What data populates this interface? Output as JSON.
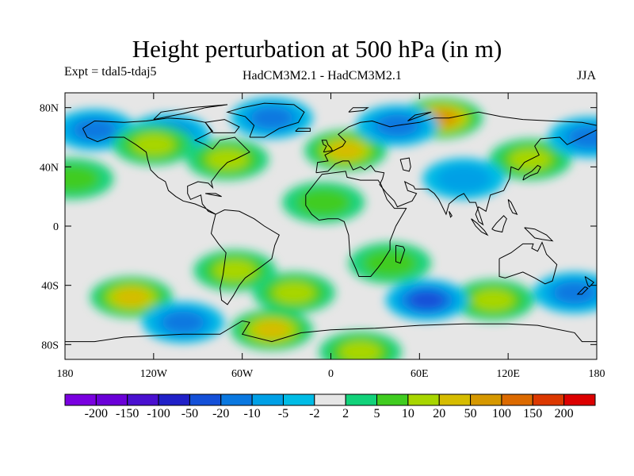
{
  "title": "Height perturbation at 500 hPa (in m)",
  "left_label": "Expt = tdal5-tdaj5",
  "center_label": "HadCM3M2.1 - HadCM3M2.1",
  "right_label": "JJA",
  "lat_ticks": [
    {
      "label": "80N",
      "lat": 80
    },
    {
      "label": "40N",
      "lat": 40
    },
    {
      "label": "0",
      "lat": 0
    },
    {
      "label": "40S",
      "lat": -40
    },
    {
      "label": "80S",
      "lat": -80
    }
  ],
  "lon_ticks": [
    {
      "label": "180",
      "lon": -180
    },
    {
      "label": "120W",
      "lon": -120
    },
    {
      "label": "60W",
      "lon": -60
    },
    {
      "label": "0",
      "lon": 0
    },
    {
      "label": "60E",
      "lon": 60
    },
    {
      "label": "120E",
      "lon": 120
    },
    {
      "label": "180",
      "lon": 180
    }
  ],
  "colorbar": {
    "colors": [
      "#7a00e0",
      "#6a00d8",
      "#4a10d0",
      "#2020c8",
      "#1450d8",
      "#0a78e0",
      "#00a0e6",
      "#00bce6",
      "#e6e6e6",
      "#12d27a",
      "#40cc20",
      "#a8d600",
      "#d6bc00",
      "#d69800",
      "#dc6a00",
      "#dc3800",
      "#dc0000"
    ],
    "labels": [
      "-200",
      "-150",
      "-100",
      "-50",
      "-20",
      "-10",
      "-5",
      "-2",
      "2",
      "5",
      "10",
      "20",
      "50",
      "100",
      "150",
      "200"
    ]
  },
  "chart_data": {
    "type": "heatmap",
    "title": "Height perturbation at 500 hPa (in m)",
    "projection": "cylindrical equidistant",
    "lon_range": [
      -180,
      180
    ],
    "lat_range": [
      -90,
      90
    ],
    "levels": [
      -200,
      -150,
      -100,
      -50,
      -20,
      -10,
      -5,
      -2,
      2,
      5,
      10,
      20,
      50,
      100,
      150,
      200
    ],
    "anomaly_centers": [
      {
        "lon": -110,
        "lat": 62,
        "sign": "negative",
        "peak_m": -10
      },
      {
        "lon": -160,
        "lat": 65,
        "sign": "negative",
        "peak_m": -10
      },
      {
        "lon": -40,
        "lat": 73,
        "sign": "negative",
        "peak_m": -10
      },
      {
        "lon": 75,
        "lat": 73,
        "sign": "positive",
        "peak_m": 50
      },
      {
        "lon": 10,
        "lat": 51,
        "sign": "positive",
        "peak_m": 20
      },
      {
        "lon": -120,
        "lat": 55,
        "sign": "positive",
        "peak_m": 10
      },
      {
        "lon": -70,
        "lat": 45,
        "sign": "positive",
        "peak_m": 10
      },
      {
        "lon": 135,
        "lat": 45,
        "sign": "positive",
        "peak_m": 10
      },
      {
        "lon": -175,
        "lat": 32,
        "sign": "positive",
        "peak_m": 5
      },
      {
        "lon": -5,
        "lat": 16,
        "sign": "positive",
        "peak_m": 5
      },
      {
        "lon": 45,
        "lat": 68,
        "sign": "negative",
        "peak_m": -10
      },
      {
        "lon": 90,
        "lat": 32,
        "sign": "negative",
        "peak_m": -5
      },
      {
        "lon": -135,
        "lat": -48,
        "sign": "positive",
        "peak_m": 20
      },
      {
        "lon": -65,
        "lat": -30,
        "sign": "positive",
        "peak_m": 10
      },
      {
        "lon": -25,
        "lat": -45,
        "sign": "positive",
        "peak_m": 10
      },
      {
        "lon": 40,
        "lat": -25,
        "sign": "positive",
        "peak_m": 5
      },
      {
        "lon": 110,
        "lat": -50,
        "sign": "positive",
        "peak_m": 10
      },
      {
        "lon": -100,
        "lat": -65,
        "sign": "negative",
        "peak_m": -10
      },
      {
        "lon": 65,
        "lat": -50,
        "sign": "negative",
        "peak_m": -20
      },
      {
        "lon": -40,
        "lat": -70,
        "sign": "positive",
        "peak_m": 20
      },
      {
        "lon": 20,
        "lat": -85,
        "sign": "positive",
        "peak_m": 10
      },
      {
        "lon": 165,
        "lat": -45,
        "sign": "negative",
        "peak_m": -10
      },
      {
        "lon": 175,
        "lat": 60,
        "sign": "negative",
        "peak_m": -10
      }
    ]
  }
}
